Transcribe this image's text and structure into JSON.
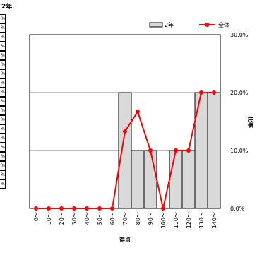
{
  "chart_data": {
    "type": "bar",
    "title": "2年",
    "xlabel": "得点",
    "ylabel": "比率",
    "ylim": [
      0,
      30
    ],
    "yticks": [
      "0.0%",
      "10.0%",
      "20.0%",
      "30.0%"
    ],
    "yticks_values": [
      0,
      10,
      20,
      30
    ],
    "categories": [
      "0～",
      "10～",
      "20～",
      "30～",
      "40～",
      "50～",
      "60～",
      "70～",
      "80～",
      "90～",
      "100～",
      "110～",
      "120～",
      "130～",
      "140～"
    ],
    "series": [
      {
        "name": "2年",
        "type": "bar",
        "color": "#d9d9d9",
        "values": [
          0,
          0,
          0,
          0,
          0,
          0,
          0,
          20,
          10,
          10,
          0,
          10,
          10,
          20,
          20
        ]
      },
      {
        "name": "全体",
        "type": "line",
        "color": "#ff0000",
        "values": [
          0,
          0,
          0,
          0,
          0,
          0,
          0,
          13.3,
          16.7,
          10,
          0,
          10,
          10,
          20,
          20
        ]
      }
    ],
    "legend": "top-right",
    "grid": true
  },
  "left_strip_glyph": "%"
}
